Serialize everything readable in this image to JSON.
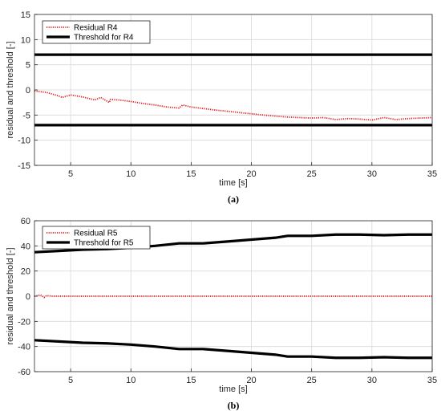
{
  "chart_data": [
    {
      "type": "line",
      "caption": "(a)",
      "xlabel": "time [s]",
      "ylabel": "residual and threshold [-]",
      "xlim": [
        2,
        35
      ],
      "ylim": [
        -15,
        15
      ],
      "xticks": [
        5,
        10,
        15,
        20,
        25,
        30,
        35
      ],
      "yticks": [
        -15,
        -10,
        -5,
        0,
        5,
        10,
        15
      ],
      "grid": true,
      "legend_position": "top-left",
      "series": [
        {
          "name": "Residual R4",
          "style": "dotted",
          "color": "#e41a1c",
          "x": [
            2,
            3,
            4,
            4.3,
            5,
            6,
            7,
            7.5,
            8.2,
            8.3,
            9,
            10,
            11,
            12,
            13,
            14,
            14.3,
            15,
            17,
            19,
            21,
            23,
            25,
            26,
            27,
            28,
            29,
            30,
            31,
            32,
            33,
            34,
            35
          ],
          "y": [
            -0.2,
            -0.5,
            -1.2,
            -1.5,
            -1.0,
            -1.4,
            -2.0,
            -1.5,
            -2.5,
            -1.9,
            -2.0,
            -2.3,
            -2.7,
            -3.0,
            -3.4,
            -3.6,
            -3.0,
            -3.4,
            -4.0,
            -4.5,
            -5.0,
            -5.4,
            -5.6,
            -5.5,
            -5.9,
            -5.7,
            -5.8,
            -6.0,
            -5.5,
            -5.9,
            -5.7,
            -5.6,
            -5.5
          ]
        },
        {
          "name": "Threshold for R4",
          "style": "solid",
          "color": "#000000",
          "x": [
            2,
            35
          ],
          "y": [
            7,
            7
          ]
        },
        {
          "name": "",
          "style": "solid",
          "color": "#000000",
          "x": [
            2,
            35
          ],
          "y": [
            -7,
            -7
          ]
        }
      ]
    },
    {
      "type": "line",
      "caption": "(b)",
      "xlabel": "time [s]",
      "ylabel": "residual and threshold [-]",
      "xlim": [
        2,
        35
      ],
      "ylim": [
        -60,
        60
      ],
      "xticks": [
        5,
        10,
        15,
        20,
        25,
        30,
        35
      ],
      "yticks": [
        -60,
        -40,
        -20,
        0,
        20,
        40,
        60
      ],
      "grid": true,
      "legend_position": "top-left",
      "series": [
        {
          "name": "Residual R5",
          "style": "dotted",
          "color": "#e41a1c",
          "x": [
            2,
            2.5,
            2.8,
            3,
            3.5,
            5,
            10,
            15,
            20,
            25,
            30,
            35
          ],
          "y": [
            0,
            1,
            -1,
            0.5,
            0,
            0,
            0,
            0,
            0,
            0,
            0,
            0
          ]
        },
        {
          "name": "Threshold for R5",
          "style": "solid",
          "color": "#000000",
          "x": [
            2,
            4,
            6,
            8,
            10,
            12,
            14,
            16,
            18,
            20,
            22,
            23,
            25,
            27,
            29,
            31,
            33,
            35
          ],
          "y": [
            35,
            36,
            37,
            37.5,
            38.5,
            40,
            42,
            42,
            43.5,
            45,
            46.5,
            48,
            48,
            49,
            49,
            48.5,
            49,
            49
          ]
        },
        {
          "name": "",
          "style": "solid",
          "color": "#000000",
          "x": [
            2,
            4,
            6,
            8,
            10,
            12,
            14,
            16,
            18,
            20,
            22,
            23,
            25,
            27,
            29,
            31,
            33,
            35
          ],
          "y": [
            -35,
            -36,
            -37,
            -37.5,
            -38.5,
            -40,
            -42,
            -42,
            -43.5,
            -45,
            -46.5,
            -48,
            -48,
            -49,
            -49,
            -48.5,
            -49,
            -49
          ]
        }
      ]
    }
  ]
}
